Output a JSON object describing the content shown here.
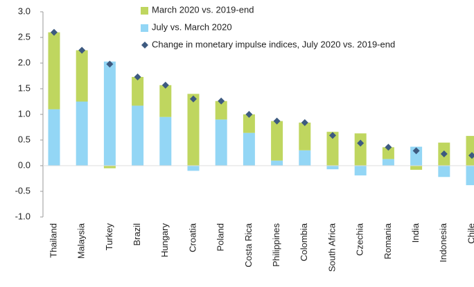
{
  "chart_data": {
    "type": "bar",
    "stacked": true,
    "categories": [
      "Thailand",
      "Malaysia",
      "Turkey",
      "Brazil",
      "Hungary",
      "Croatia",
      "Poland",
      "Costa Rica",
      "Philippines",
      "Colombia",
      "South Africa",
      "Czechia",
      "Romania",
      "India",
      "Indonesia",
      "Chile"
    ],
    "series": [
      {
        "name": "March 2020 vs. 2019-end",
        "color": "#bfd65f",
        "values": [
          1.5,
          1.0,
          -0.05,
          0.56,
          0.62,
          1.4,
          0.36,
          0.36,
          0.77,
          0.54,
          0.66,
          0.63,
          0.23,
          -0.08,
          0.45,
          0.58
        ]
      },
      {
        "name": "July vs. March 2020",
        "color": "#93d6f5",
        "values": [
          1.1,
          1.25,
          2.03,
          1.17,
          0.95,
          -0.1,
          0.9,
          0.64,
          0.1,
          0.3,
          -0.07,
          -0.19,
          0.13,
          0.37,
          -0.22,
          -0.38
        ]
      },
      {
        "name": "Change in monetary impulse indices, July 2020 vs. 2019-end",
        "color": "#3d5a80",
        "type": "marker",
        "values": [
          2.6,
          2.25,
          1.98,
          1.73,
          1.57,
          1.3,
          1.26,
          1.0,
          0.87,
          0.84,
          0.59,
          0.44,
          0.36,
          0.29,
          0.23,
          0.2
        ]
      }
    ],
    "ylim": [
      -1.0,
      3.0
    ],
    "yticks": [
      {
        "value": -1.0,
        "label": "-1.0"
      },
      -0.5,
      {
        "value": 0,
        "label": "0.0"
      },
      0.5,
      {
        "value": 1.0,
        "label": "1.0"
      },
      1.5,
      {
        "value": 2.0,
        "label": "2.0"
      },
      2.5,
      {
        "value": 3.0,
        "label": "3.0"
      }
    ]
  }
}
